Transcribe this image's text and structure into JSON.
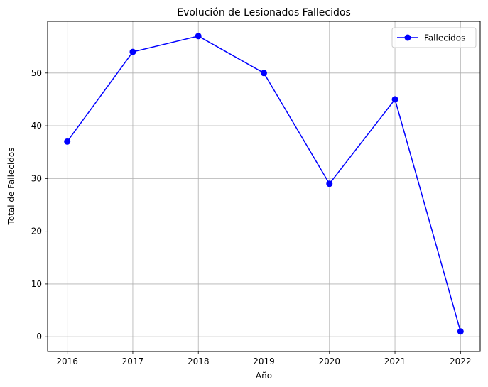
{
  "chart_data": {
    "type": "line",
    "title": "Evolución de Lesionados Fallecidos",
    "xlabel": "Año",
    "ylabel": "Total de Fallecidos",
    "x": [
      2016,
      2017,
      2018,
      2019,
      2020,
      2021,
      2022
    ],
    "series": [
      {
        "name": "Fallecidos",
        "values": [
          37,
          54,
          57,
          50,
          29,
          45,
          1
        ],
        "color": "#0000ff",
        "marker": "circle"
      }
    ],
    "xlim": [
      2015.7,
      2022.3
    ],
    "ylim": [
      -2.8,
      59.8
    ],
    "x_ticks": [
      "2016",
      "2017",
      "2018",
      "2019",
      "2020",
      "2021",
      "2022"
    ],
    "y_ticks": [
      0,
      10,
      20,
      30,
      40,
      50
    ],
    "grid": true,
    "legend_position": "top-right"
  }
}
